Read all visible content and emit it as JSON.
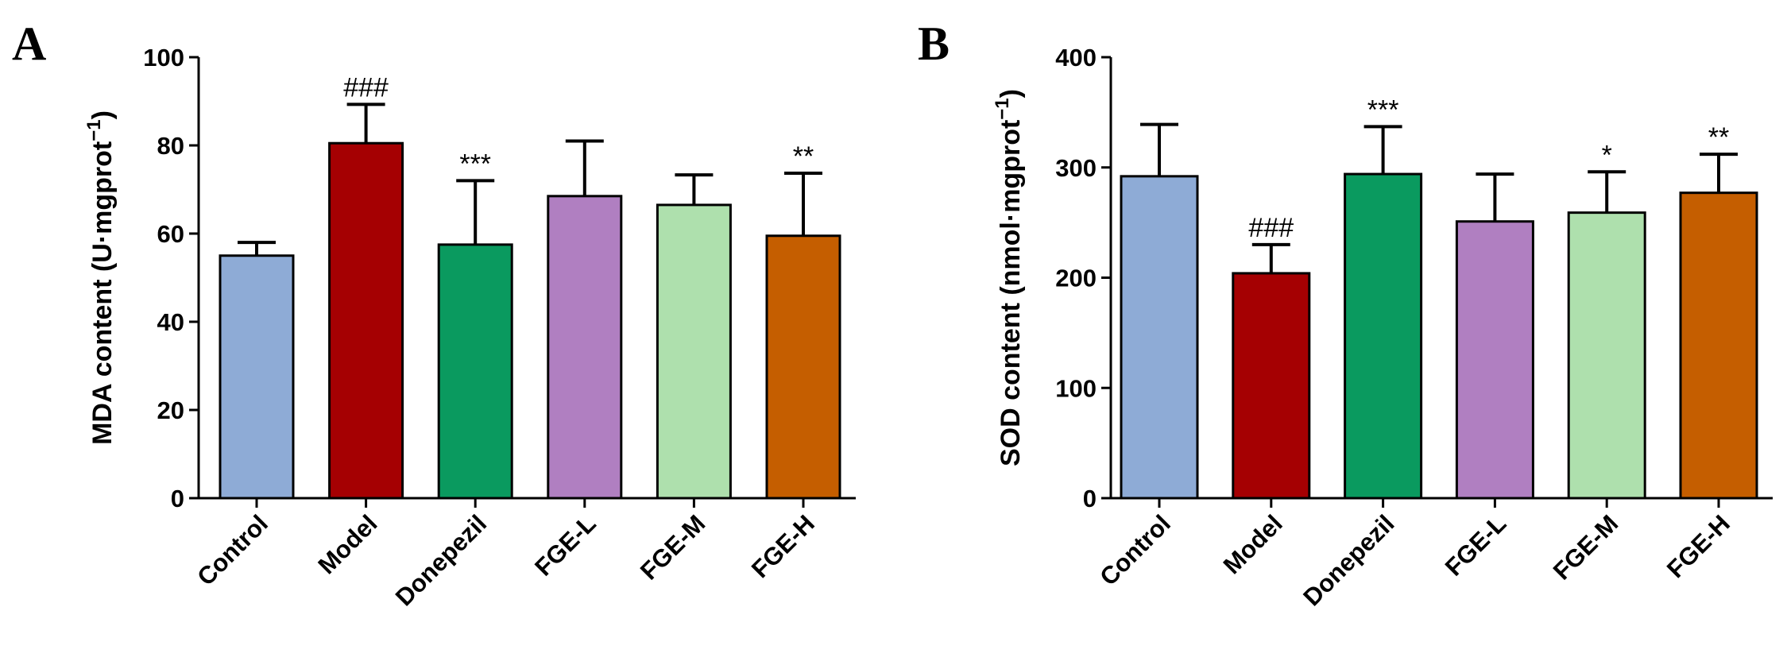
{
  "chart_data": [
    {
      "type": "bar",
      "panel_label": "A",
      "categories": [
        "Control",
        "Model",
        "Donepezil",
        "FGE-L",
        "FGE-M",
        "FGE-H"
      ],
      "values": [
        55,
        80.5,
        57.5,
        68.5,
        66.5,
        59.5
      ],
      "errors": [
        3,
        8.8,
        14.5,
        12.5,
        6.8,
        14.2
      ],
      "significance": [
        "",
        "###",
        "***",
        "",
        "",
        "**"
      ],
      "colors": [
        "#8eabd6",
        "#a50002",
        "#0a9a5f",
        "#b07fc1",
        "#aee0ad",
        "#c55e00"
      ],
      "ylabel_main": "MDA content (U·mgprot",
      "ylabel_exp": "−1",
      "ylabel_close": ")",
      "ylim": [
        0,
        100
      ],
      "yticks": [
        0,
        20,
        40,
        60,
        80,
        100
      ],
      "ytick_labels": [
        "0",
        "20",
        "40",
        "60",
        "80",
        "100"
      ]
    },
    {
      "type": "bar",
      "panel_label": "B",
      "categories": [
        "Control",
        "Model",
        "Donepezil",
        "FGE-L",
        "FGE-M",
        "FGE-H"
      ],
      "values": [
        292,
        204,
        294,
        251,
        259,
        277
      ],
      "errors": [
        47,
        26,
        43,
        43,
        37,
        35
      ],
      "significance": [
        "",
        "###",
        "***",
        "",
        "*",
        "**"
      ],
      "colors": [
        "#8eabd6",
        "#a50002",
        "#0a9a5f",
        "#b07fc1",
        "#aee0ad",
        "#c55e00"
      ],
      "ylabel_main": "SOD content (nmol·mgprot",
      "ylabel_exp": "−1",
      "ylabel_close": ")",
      "ylim": [
        0,
        400
      ],
      "yticks": [
        0,
        100,
        200,
        300,
        400
      ],
      "ytick_labels": [
        "0",
        "100",
        "200",
        "300",
        "400"
      ]
    }
  ]
}
